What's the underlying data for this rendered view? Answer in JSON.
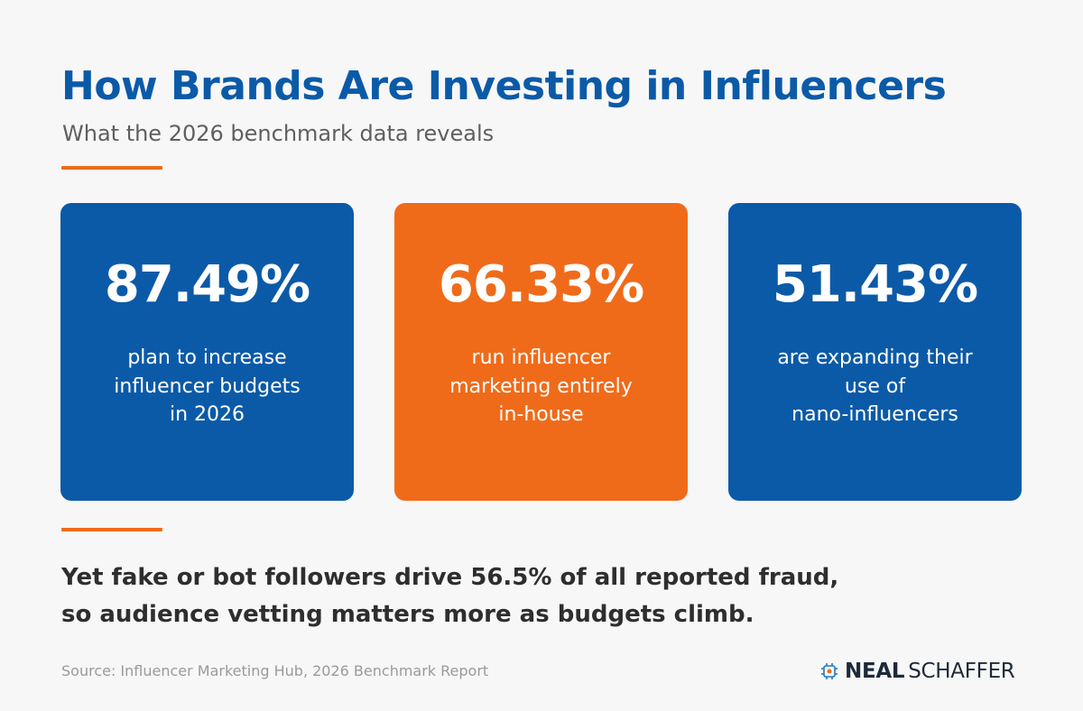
{
  "header": {
    "title": "How Brands Are Investing in Influencers",
    "subtitle": "What the 2026 benchmark data reveals"
  },
  "colors": {
    "blue": "#0b5aa8",
    "orange": "#ef6b1a",
    "text_dark": "#2e2e2e",
    "muted": "#9a9a9a"
  },
  "stats": [
    {
      "value": "87.49%",
      "description": "plan to increase\ninfluencer budgets\nin 2026",
      "color": "#0b5aa8"
    },
    {
      "value": "66.33%",
      "description": "run influencer\nmarketing entirely\nin-house",
      "color": "#ef6b1a"
    },
    {
      "value": "51.43%",
      "description": "are expanding their\nuse of\nnano-influencers",
      "color": "#0b5aa8"
    }
  ],
  "callout": "Yet fake or bot followers drive 56.5% of all reported fraud,\nso audience vetting matters more as budgets climb.",
  "footer": {
    "source": "Source: Influencer Marketing Hub, 2026 Benchmark Report",
    "logo_bold": "NEAL",
    "logo_light": "SCHAFFER",
    "logo_icon": "brain-chip-icon"
  }
}
